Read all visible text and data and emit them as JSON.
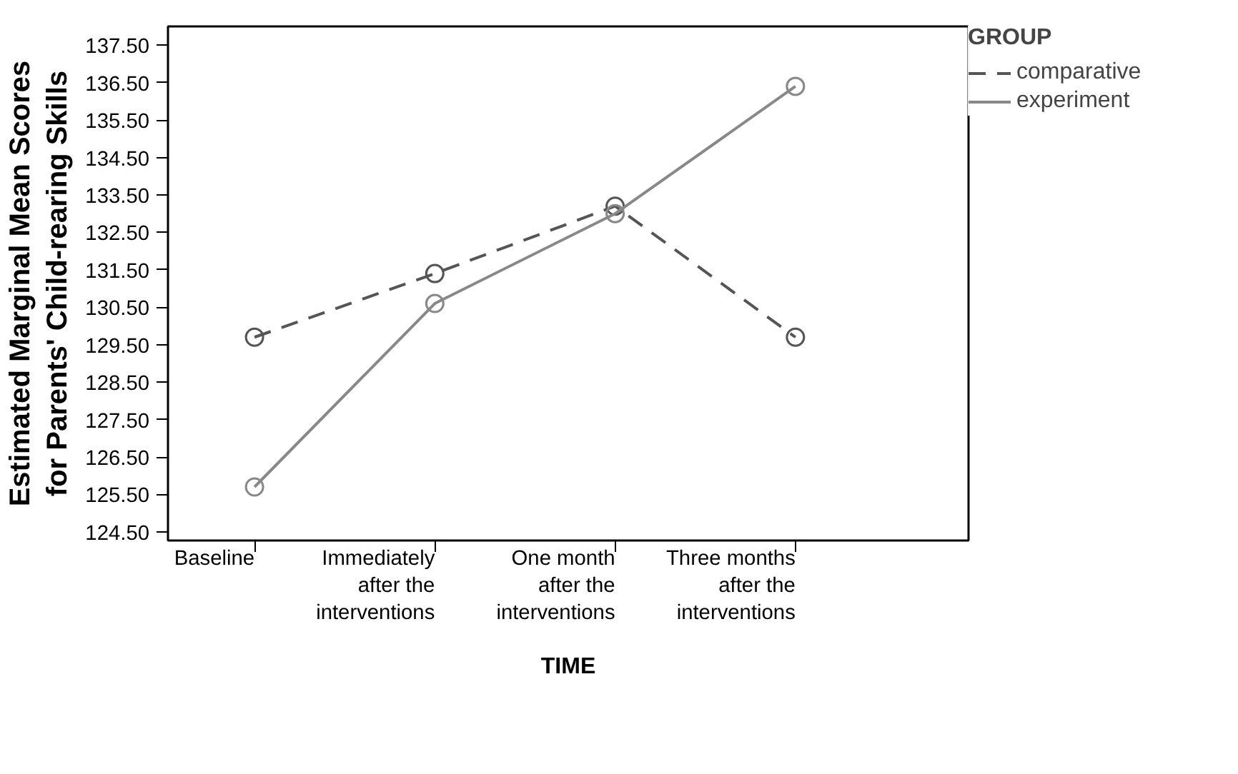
{
  "chart_data": {
    "type": "line",
    "xlabel": "TIME",
    "ylabel": "Estimated Marginal Mean Scores\nfor Parents' Child-rearing Skills",
    "legend_title": "GROUP",
    "categories": [
      "Baseline",
      "Immediately\nafter the\ninterventions",
      "One month\nafter the\ninterventions",
      "Three months\nafter the\ninterventions"
    ],
    "series": [
      {
        "name": "comparative",
        "color": "#555555",
        "line_style": "dashed",
        "values": [
          129.7,
          131.4,
          133.2,
          129.7
        ]
      },
      {
        "name": "experiment",
        "color": "#888888",
        "line_style": "solid",
        "values": [
          125.7,
          130.6,
          133.0,
          136.4
        ]
      }
    ],
    "ylim": [
      124.27,
      138.0
    ],
    "yticks": [
      {
        "value": 124.5,
        "label": "124.50"
      },
      {
        "value": 125.5,
        "label": "125.50"
      },
      {
        "value": 126.5,
        "label": "126.50"
      },
      {
        "value": 127.5,
        "label": "127.50"
      },
      {
        "value": 128.5,
        "label": "128.50"
      },
      {
        "value": 129.5,
        "label": "129.50"
      },
      {
        "value": 130.5,
        "label": "130.50"
      },
      {
        "value": 131.5,
        "label": "131.50"
      },
      {
        "value": 132.5,
        "label": "132.50"
      },
      {
        "value": 133.5,
        "label": "133.50"
      },
      {
        "value": 134.5,
        "label": "134.50"
      },
      {
        "value": 135.5,
        "label": "135.50"
      },
      {
        "value": 136.5,
        "label": "136.50"
      },
      {
        "value": 137.5,
        "label": "137.50"
      }
    ],
    "marker": "circle",
    "grid": false,
    "legend": "top right"
  }
}
